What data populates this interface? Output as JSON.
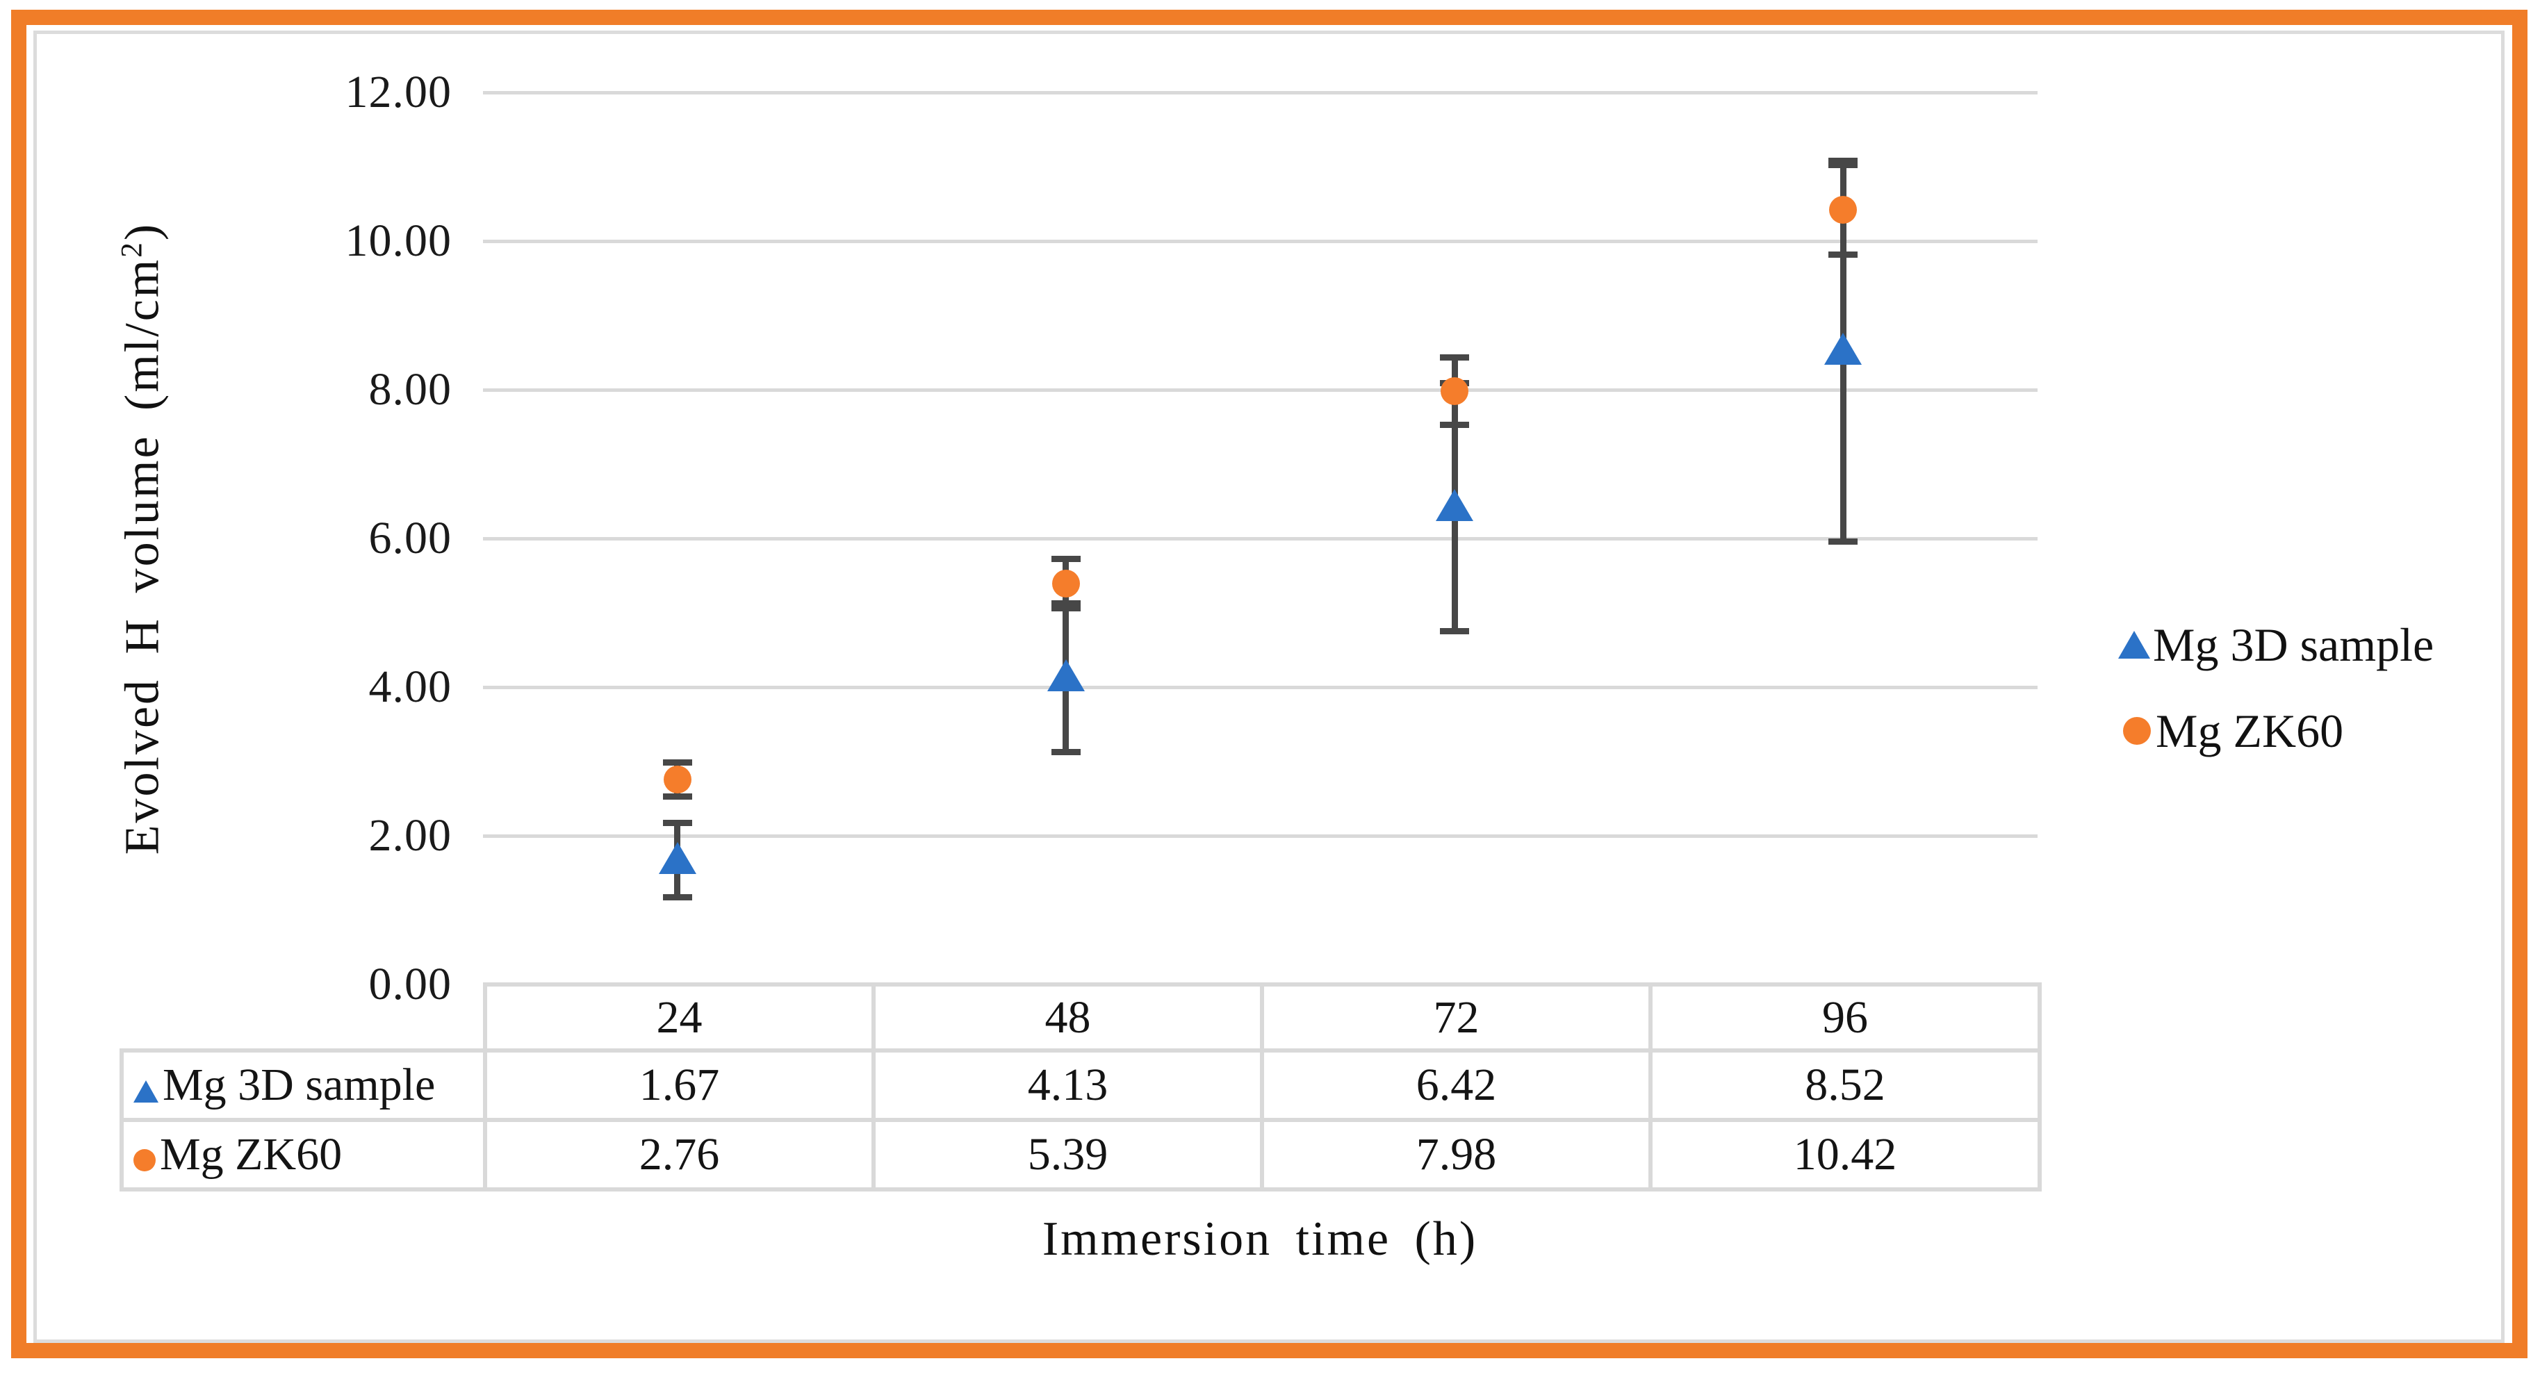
{
  "frame": {
    "outer_border_color": "#F07D28",
    "inner_border_color": "#DCDCDC"
  },
  "chart_data": {
    "type": "scatter",
    "title": "",
    "xlabel": "Immersion time (h)",
    "ylabel_main": "Evolved H volume (ml/cm",
    "ylabel_sup": "2",
    "ylabel_close": ")",
    "x": [
      24,
      48,
      72,
      96
    ],
    "ylim": [
      0,
      12
    ],
    "ytick_step": 2,
    "yticks": [
      "12.00",
      "10.00",
      "8.00",
      "6.00",
      "4.00",
      "2.00",
      "0.00"
    ],
    "grid": true,
    "gridline_color": "#D9D9D9",
    "error_bar_color": "#474747",
    "legend_position": "right",
    "series": [
      {
        "name": "Mg 3D sample",
        "marker": "triangle",
        "color": "#2B72C7",
        "values": [
          1.67,
          4.13,
          6.42,
          8.52
        ],
        "err_plus": [
          0.5,
          1.0,
          1.67,
          2.56
        ],
        "err_minus": [
          0.5,
          1.0,
          1.67,
          2.56
        ]
      },
      {
        "name": "Mg ZK60",
        "marker": "circle",
        "color": "#F57D2B",
        "values": [
          2.76,
          5.39,
          7.98,
          10.42
        ],
        "err_plus": [
          0.23,
          0.33,
          0.45,
          0.6
        ],
        "err_minus": [
          0.23,
          0.33,
          0.45,
          0.6
        ]
      }
    ]
  },
  "table": {
    "col_headers": [
      "24",
      "48",
      "72",
      "96"
    ],
    "rows": [
      {
        "label": "Mg 3D sample",
        "values": [
          "1.67",
          "4.13",
          "6.42",
          "8.52"
        ]
      },
      {
        "label": "Mg ZK60",
        "values": [
          "2.76",
          "5.39",
          "7.98",
          "10.42"
        ]
      }
    ]
  },
  "legend": {
    "items": [
      {
        "label": "Mg 3D sample",
        "marker": "triangle"
      },
      {
        "label": "Mg ZK60",
        "marker": "circle"
      }
    ]
  }
}
